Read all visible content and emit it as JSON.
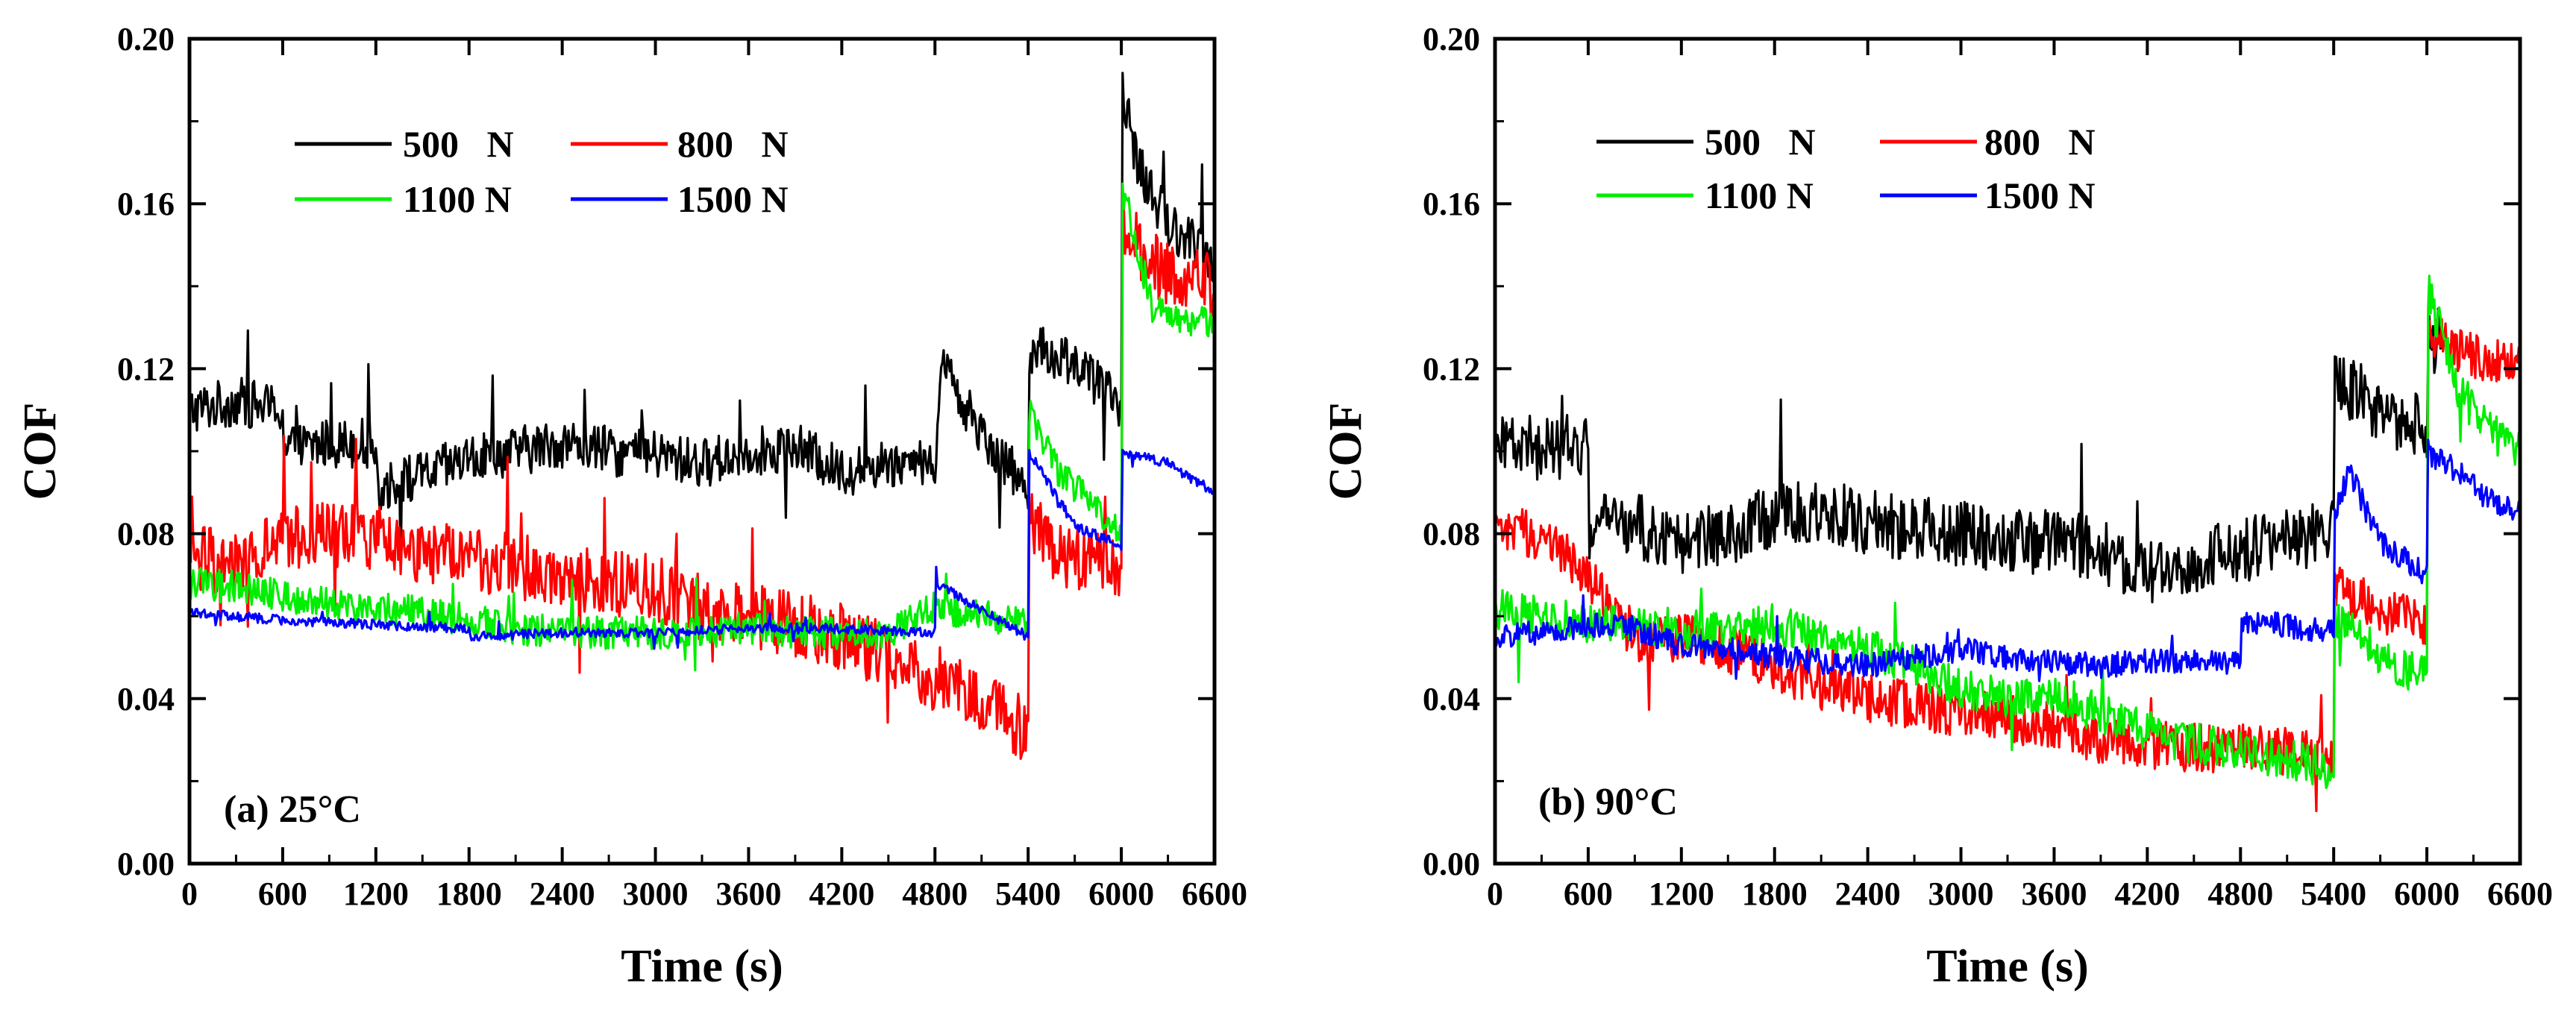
{
  "chart_data": [
    {
      "type": "line",
      "panel_label": "(a) 25°C",
      "xlabel": "Time (s)",
      "ylabel": "COF",
      "xlim": [
        0,
        6600
      ],
      "ylim": [
        0,
        0.2
      ],
      "x_ticks": [
        0,
        600,
        1200,
        1800,
        2400,
        3000,
        3600,
        4200,
        4800,
        5400,
        6000,
        6600
      ],
      "x_tick_labels": [
        "0",
        "600",
        "1200",
        "1800",
        "2400",
        "3000",
        "3600",
        "4200",
        "4800",
        "5400",
        "6000",
        "6600"
      ],
      "y_ticks": [
        0,
        0.04,
        0.08,
        0.12,
        0.16,
        0.2
      ],
      "y_tick_labels": [
        "0.00",
        "0.04",
        "0.08",
        "0.12",
        "0.16",
        "0.20"
      ],
      "grid": false,
      "legend_position": "top-left",
      "series": [
        {
          "name": "500   N",
          "color": "#000000",
          "noise": 0.006,
          "x": [
            0,
            300,
            600,
            601,
            900,
            1200,
            1201,
            1500,
            1800,
            2100,
            2400,
            2700,
            3000,
            3300,
            3600,
            3900,
            4200,
            4500,
            4800,
            4850,
            5100,
            5400,
            5401,
            5700,
            6000,
            6001,
            6100,
            6300,
            6500,
            6600
          ],
          "y": [
            0.11,
            0.112,
            0.11,
            0.1,
            0.102,
            0.102,
            0.091,
            0.094,
            0.098,
            0.1,
            0.102,
            0.1,
            0.099,
            0.097,
            0.1,
            0.101,
            0.095,
            0.097,
            0.098,
            0.12,
            0.105,
            0.09,
            0.125,
            0.122,
            0.11,
            0.19,
            0.17,
            0.155,
            0.15,
            0.145
          ]
        },
        {
          "name": "800   N",
          "color": "#ff0000",
          "noise": 0.008,
          "x": [
            0,
            300,
            600,
            900,
            1200,
            1500,
            1800,
            2100,
            2400,
            2700,
            3000,
            3300,
            3600,
            3900,
            4200,
            4500,
            4800,
            5100,
            5400,
            5401,
            5600,
            6000,
            6001,
            6200,
            6400,
            6600
          ],
          "y": [
            0.075,
            0.072,
            0.078,
            0.08,
            0.079,
            0.076,
            0.074,
            0.072,
            0.07,
            0.068,
            0.067,
            0.062,
            0.06,
            0.058,
            0.055,
            0.05,
            0.045,
            0.04,
            0.032,
            0.085,
            0.075,
            0.072,
            0.155,
            0.145,
            0.142,
            0.14
          ]
        },
        {
          "name": "1100 N",
          "color": "#00ee00",
          "noise": 0.004,
          "x": [
            0,
            300,
            600,
            900,
            1200,
            1500,
            1800,
            2100,
            2400,
            2700,
            3000,
            3300,
            3600,
            3900,
            4200,
            4500,
            4800,
            5100,
            5400,
            5401,
            5600,
            6000,
            6001,
            6200,
            6400,
            6600
          ],
          "y": [
            0.068,
            0.067,
            0.065,
            0.063,
            0.062,
            0.061,
            0.059,
            0.057,
            0.056,
            0.056,
            0.056,
            0.056,
            0.057,
            0.056,
            0.056,
            0.056,
            0.062,
            0.06,
            0.058,
            0.11,
            0.095,
            0.08,
            0.165,
            0.135,
            0.13,
            0.132
          ]
        },
        {
          "name": "1500 N",
          "color": "#0000ff",
          "noise": 0.0012,
          "x": [
            0,
            600,
            1200,
            1800,
            1801,
            2400,
            3000,
            3600,
            4200,
            4800,
            4801,
            5400,
            5401,
            5700,
            6000,
            6001,
            6300,
            6600
          ],
          "y": [
            0.061,
            0.059,
            0.058,
            0.057,
            0.055,
            0.056,
            0.056,
            0.057,
            0.057,
            0.056,
            0.068,
            0.055,
            0.1,
            0.082,
            0.077,
            0.1,
            0.097,
            0.09
          ]
        }
      ]
    },
    {
      "type": "line",
      "panel_label": "(b) 90°C",
      "xlabel": "Time (s)",
      "ylabel": "COF",
      "xlim": [
        0,
        6600
      ],
      "ylim": [
        0,
        0.2
      ],
      "x_ticks": [
        0,
        600,
        1200,
        1800,
        2400,
        3000,
        3600,
        4200,
        4800,
        5400,
        6000,
        6600
      ],
      "x_tick_labels": [
        "0",
        "600",
        "1200",
        "1800",
        "2400",
        "3000",
        "3600",
        "4200",
        "4800",
        "5400",
        "6000",
        "6600"
      ],
      "y_ticks": [
        0,
        0.04,
        0.08,
        0.12,
        0.16,
        0.2
      ],
      "y_tick_labels": [
        "0.00",
        "0.04",
        "0.08",
        "0.12",
        "0.16",
        "0.20"
      ],
      "grid": false,
      "legend_position": "top-left",
      "series": [
        {
          "name": "500   N",
          "color": "#000000",
          "noise": 0.008,
          "x": [
            0,
            300,
            600,
            601,
            900,
            1200,
            1500,
            1800,
            2100,
            2400,
            2700,
            3000,
            3300,
            3600,
            3900,
            4200,
            4500,
            4800,
            5100,
            5400,
            5401,
            5700,
            6000,
            6001,
            6100
          ],
          "y": [
            0.105,
            0.1,
            0.102,
            0.082,
            0.082,
            0.078,
            0.08,
            0.085,
            0.086,
            0.083,
            0.081,
            0.08,
            0.078,
            0.078,
            0.076,
            0.07,
            0.073,
            0.076,
            0.079,
            0.08,
            0.118,
            0.11,
            0.105,
            0.125,
            0.128
          ]
        },
        {
          "name": "800   N",
          "color": "#ff0000",
          "noise": 0.006,
          "x": [
            0,
            300,
            600,
            900,
            1200,
            1500,
            1800,
            2100,
            2400,
            2700,
            3000,
            3300,
            3600,
            3900,
            4200,
            4500,
            4800,
            5100,
            5400,
            5401,
            5700,
            6000,
            6001,
            6200,
            6400,
            6600
          ],
          "y": [
            0.08,
            0.08,
            0.07,
            0.055,
            0.055,
            0.052,
            0.048,
            0.043,
            0.04,
            0.038,
            0.037,
            0.035,
            0.033,
            0.03,
            0.029,
            0.028,
            0.028,
            0.027,
            0.026,
            0.068,
            0.062,
            0.058,
            0.13,
            0.125,
            0.122,
            0.12
          ]
        },
        {
          "name": "1100 N",
          "color": "#00ee00",
          "noise": 0.005,
          "x": [
            0,
            300,
            600,
            900,
            1200,
            1500,
            1800,
            2100,
            2400,
            2700,
            3000,
            3300,
            3600,
            3900,
            4200,
            4500,
            4800,
            5100,
            5400,
            5401,
            5700,
            6000,
            6001,
            6200,
            6400,
            6600
          ],
          "y": [
            0.062,
            0.06,
            0.058,
            0.058,
            0.057,
            0.056,
            0.058,
            0.054,
            0.052,
            0.048,
            0.042,
            0.04,
            0.042,
            0.036,
            0.032,
            0.029,
            0.028,
            0.025,
            0.023,
            0.06,
            0.05,
            0.045,
            0.14,
            0.115,
            0.105,
            0.1
          ]
        },
        {
          "name": "1500 N",
          "color": "#0000ff",
          "noise": 0.003,
          "x": [
            0,
            300,
            600,
            900,
            1200,
            1500,
            1800,
            2100,
            2400,
            2700,
            3000,
            3300,
            3600,
            3900,
            4200,
            4500,
            4800,
            4801,
            5400,
            5401,
            5500,
            5700,
            6000,
            6001,
            6200,
            6400,
            6600
          ],
          "y": [
            0.055,
            0.056,
            0.058,
            0.057,
            0.053,
            0.052,
            0.05,
            0.049,
            0.048,
            0.05,
            0.052,
            0.05,
            0.049,
            0.048,
            0.049,
            0.049,
            0.049,
            0.059,
            0.056,
            0.085,
            0.095,
            0.078,
            0.07,
            0.1,
            0.095,
            0.088,
            0.085
          ]
        }
      ]
    }
  ]
}
